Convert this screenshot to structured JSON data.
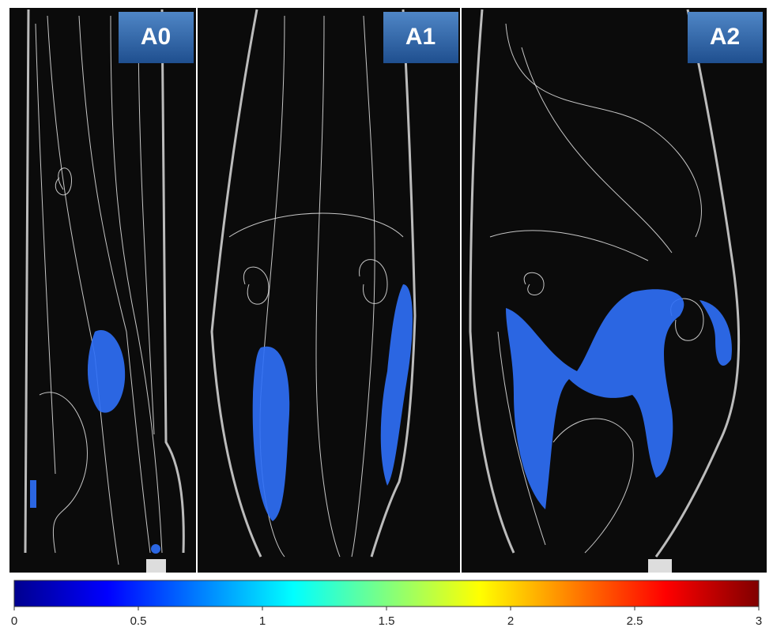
{
  "panels": [
    {
      "label": "A0"
    },
    {
      "label": "A1"
    },
    {
      "label": "A2"
    }
  ],
  "colorbar": {
    "lim": [
      0,
      3
    ],
    "ticks": [
      0,
      0.5,
      1,
      1.5,
      2,
      2.5,
      3
    ]
  }
}
